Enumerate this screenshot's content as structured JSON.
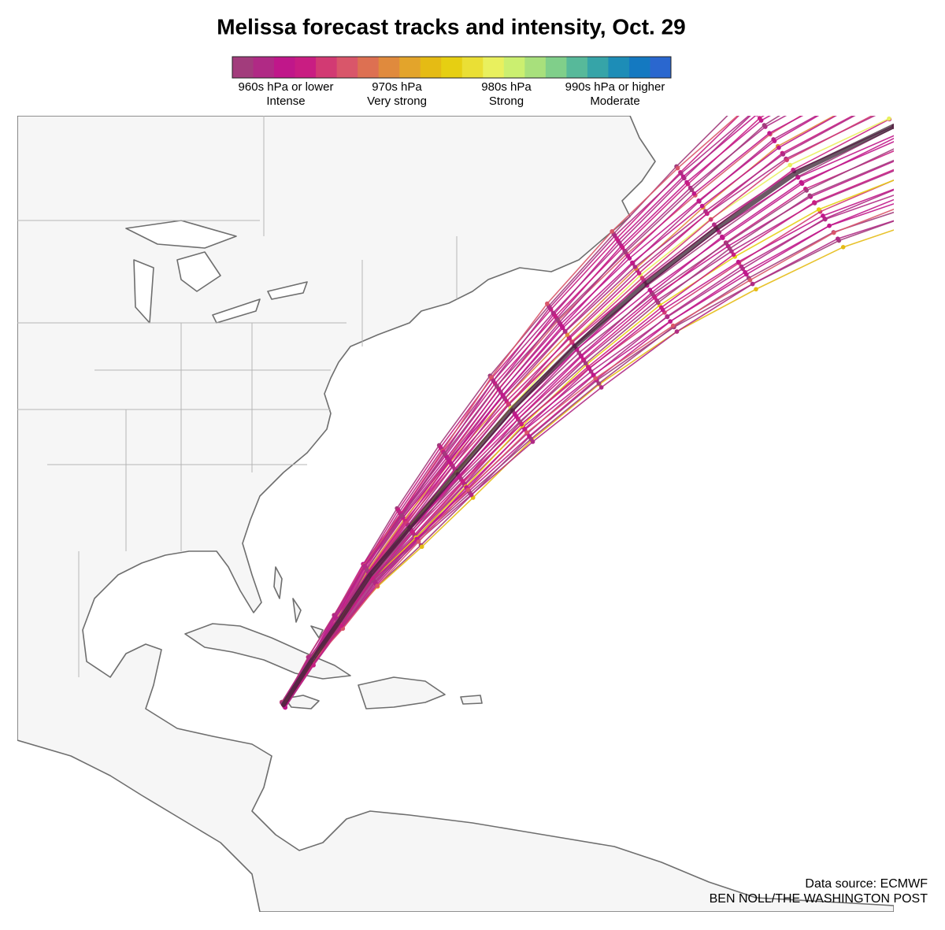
{
  "title": "Melissa forecast tracks and intensity, Oct. 29",
  "legend": {
    "colors": [
      "#a23c7c",
      "#b02a85",
      "#c0178a",
      "#c91d82",
      "#d23a73",
      "#d9566a",
      "#dd7052",
      "#e08a3d",
      "#e3a42b",
      "#e5bb14",
      "#e6cf12",
      "#eadf35",
      "#e9f05e",
      "#cbef70",
      "#a8e07c",
      "#80cf8a",
      "#57b99a",
      "#36a4a8",
      "#1d8db7",
      "#1479c1",
      "#2a67cf"
    ],
    "labels": [
      {
        "pressure": "960s hPa or lower",
        "intensity": "Intense"
      },
      {
        "pressure": "970s hPa",
        "intensity": "Very strong"
      },
      {
        "pressure": "980s hPa",
        "intensity": "Strong"
      },
      {
        "pressure": "990s hPa or higher",
        "intensity": "Moderate"
      }
    ]
  },
  "source": "Data source: ECMWF",
  "credit": "BEN NOLL/THE WASHINGTON POST"
}
